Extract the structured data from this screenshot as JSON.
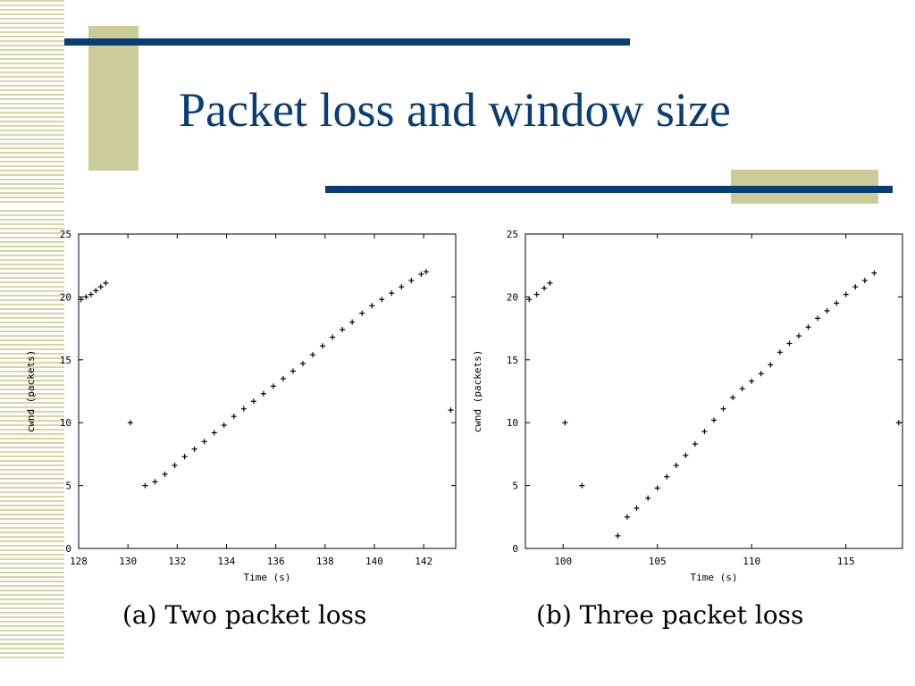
{
  "slide": {
    "title": "Packet loss and window size",
    "caption_a": "(a) Two packet loss",
    "caption_b": "(b) Three packet loss",
    "accent_color": "#0a3d72",
    "decor_color": "#cccc99"
  },
  "chart_data": [
    {
      "type": "scatter",
      "title": "",
      "xlabel": "Time (s)",
      "ylabel": "cwnd (packets)",
      "xlim": [
        128,
        143.3
      ],
      "ylim": [
        0,
        25
      ],
      "xticks": [
        128,
        130,
        132,
        134,
        136,
        138,
        140,
        142
      ],
      "yticks": [
        0,
        5,
        10,
        15,
        20,
        25
      ],
      "grid": false,
      "points": [
        [
          128.1,
          19.8
        ],
        [
          128.3,
          20.0
        ],
        [
          128.5,
          20.2
        ],
        [
          128.7,
          20.5
        ],
        [
          128.9,
          20.8
        ],
        [
          129.1,
          21.1
        ],
        [
          130.1,
          10.0
        ],
        [
          130.7,
          5.0
        ],
        [
          131.1,
          5.3
        ],
        [
          131.5,
          5.9
        ],
        [
          131.9,
          6.6
        ],
        [
          132.3,
          7.3
        ],
        [
          132.7,
          7.9
        ],
        [
          133.1,
          8.5
        ],
        [
          133.5,
          9.2
        ],
        [
          133.9,
          9.8
        ],
        [
          134.3,
          10.5
        ],
        [
          134.7,
          11.1
        ],
        [
          135.1,
          11.7
        ],
        [
          135.5,
          12.3
        ],
        [
          135.9,
          12.9
        ],
        [
          136.3,
          13.5
        ],
        [
          136.7,
          14.1
        ],
        [
          137.1,
          14.7
        ],
        [
          137.5,
          15.4
        ],
        [
          137.9,
          16.1
        ],
        [
          138.3,
          16.8
        ],
        [
          138.7,
          17.4
        ],
        [
          139.1,
          18.0
        ],
        [
          139.5,
          18.7
        ],
        [
          139.9,
          19.3
        ],
        [
          140.3,
          19.8
        ],
        [
          140.7,
          20.3
        ],
        [
          141.1,
          20.8
        ],
        [
          141.5,
          21.3
        ],
        [
          141.9,
          21.8
        ],
        [
          142.1,
          22.0
        ],
        [
          143.1,
          11.0
        ]
      ]
    },
    {
      "type": "scatter",
      "title": "",
      "xlabel": "Time (s)",
      "ylabel": "cwnd (packets)",
      "xlim": [
        98,
        118
      ],
      "ylim": [
        0,
        25
      ],
      "xticks": [
        100,
        105,
        110,
        115
      ],
      "yticks": [
        0,
        5,
        10,
        15,
        20,
        25
      ],
      "grid": false,
      "points": [
        [
          98.2,
          19.8
        ],
        [
          98.6,
          20.2
        ],
        [
          99.0,
          20.7
        ],
        [
          99.3,
          21.1
        ],
        [
          100.1,
          10.0
        ],
        [
          101.0,
          5.0
        ],
        [
          102.9,
          1.0
        ],
        [
          103.4,
          2.5
        ],
        [
          103.9,
          3.2
        ],
        [
          104.5,
          4.0
        ],
        [
          105.0,
          4.8
        ],
        [
          105.5,
          5.7
        ],
        [
          106.0,
          6.6
        ],
        [
          106.5,
          7.4
        ],
        [
          107.0,
          8.3
        ],
        [
          107.5,
          9.3
        ],
        [
          108.0,
          10.2
        ],
        [
          108.5,
          11.1
        ],
        [
          109.0,
          12.0
        ],
        [
          109.5,
          12.7
        ],
        [
          110.0,
          13.3
        ],
        [
          110.5,
          13.9
        ],
        [
          111.0,
          14.6
        ],
        [
          111.5,
          15.6
        ],
        [
          112.0,
          16.3
        ],
        [
          112.5,
          16.9
        ],
        [
          113.0,
          17.6
        ],
        [
          113.5,
          18.3
        ],
        [
          114.0,
          18.9
        ],
        [
          114.5,
          19.5
        ],
        [
          115.0,
          20.2
        ],
        [
          115.5,
          20.8
        ],
        [
          116.0,
          21.3
        ],
        [
          116.5,
          21.9
        ],
        [
          117.8,
          10.0
        ]
      ]
    }
  ]
}
